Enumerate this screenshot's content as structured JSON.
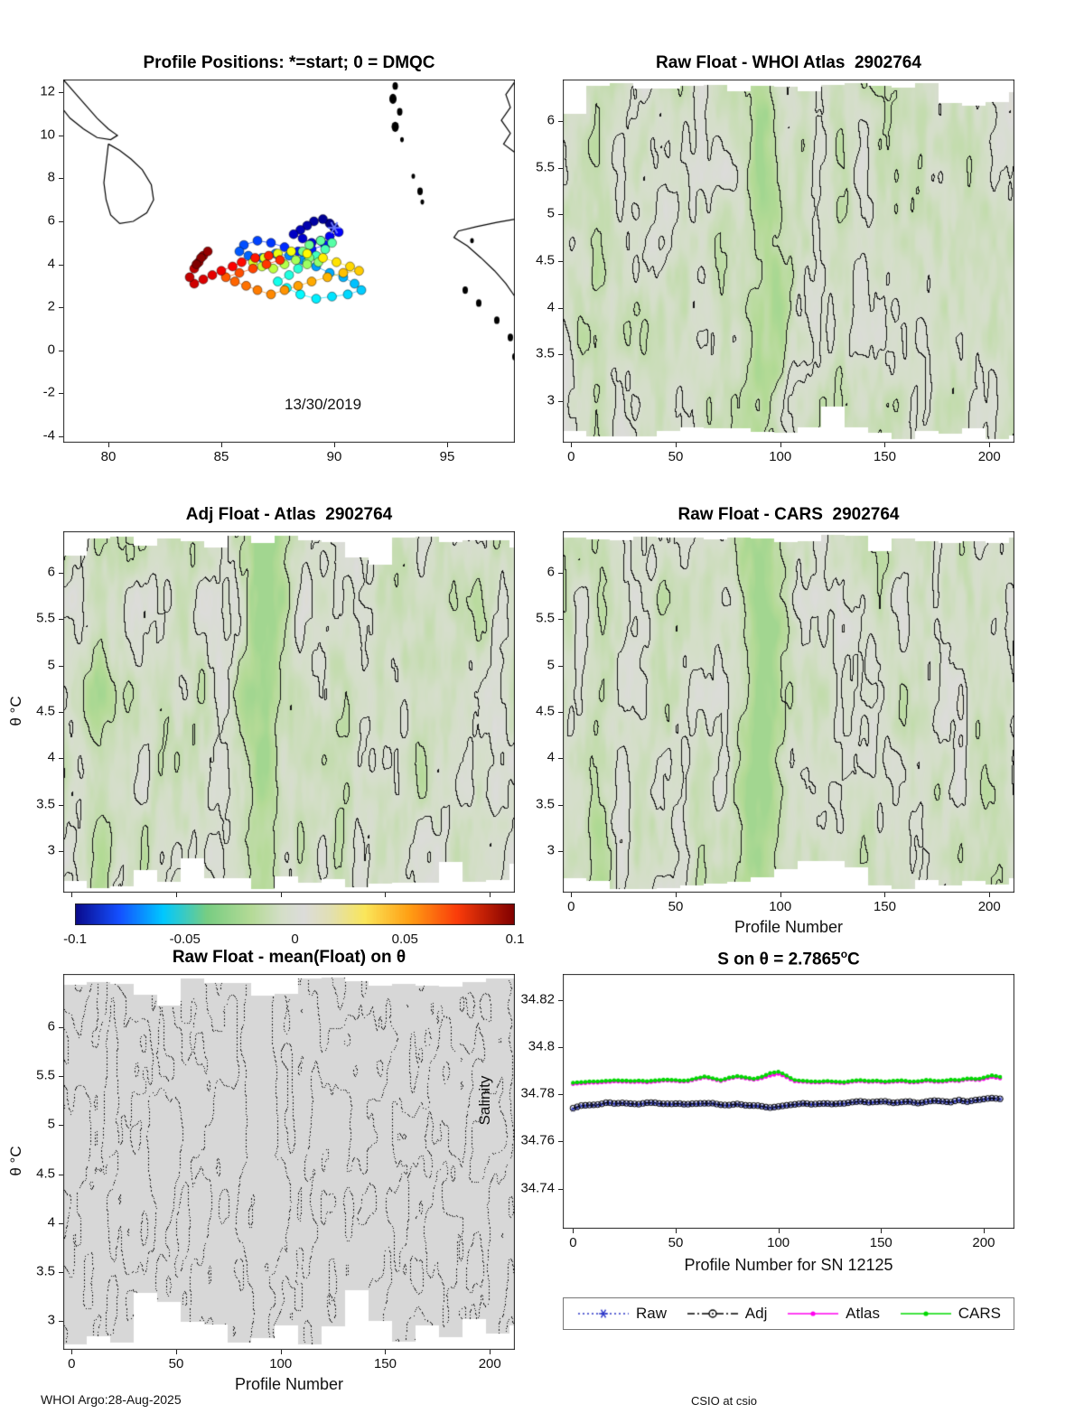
{
  "figure": {
    "footer_left": "WHOI Argo:28-Aug-2025",
    "footer_right": "CSIO at csio"
  },
  "legend": {
    "items": [
      {
        "name": "raw",
        "label": "Raw",
        "color": "#2a35c8",
        "line": "dotted",
        "marker": "asterisk"
      },
      {
        "name": "adj",
        "label": "Adj",
        "color": "#000000",
        "line": "dashdot",
        "marker": "circle"
      },
      {
        "name": "atlas",
        "label": "Atlas",
        "color": "#ff00ee",
        "line": "solid",
        "marker": "dot"
      },
      {
        "name": "cars",
        "label": "CARS",
        "color": "#00d800",
        "line": "solid",
        "marker": "dot"
      }
    ]
  },
  "chart_data": [
    {
      "id": "positions",
      "type": "scatter",
      "title": "Profile Positions: *=start; 0 = DMQC",
      "date_label": "13/30/2019",
      "xlim": [
        78,
        98
      ],
      "ylim": [
        -4.3,
        12.6
      ],
      "xticks": [
        80,
        85,
        90,
        95
      ],
      "yticks": [
        -4,
        -2,
        0,
        2,
        4,
        6,
        8,
        10,
        12
      ],
      "start": [
        90.0,
        5.7
      ],
      "trajectory": [
        [
          90.0,
          5.7
        ],
        [
          89.8,
          5.9
        ],
        [
          89.5,
          6.1
        ],
        [
          89.1,
          6.0
        ],
        [
          88.8,
          5.8
        ],
        [
          88.5,
          5.6
        ],
        [
          88.2,
          5.4
        ],
        [
          88.6,
          5.2
        ],
        [
          89.0,
          5.0
        ],
        [
          89.4,
          5.1
        ],
        [
          89.8,
          5.3
        ],
        [
          90.2,
          5.5
        ],
        [
          89.6,
          4.9
        ],
        [
          89.0,
          4.7
        ],
        [
          88.4,
          4.6
        ],
        [
          87.8,
          4.8
        ],
        [
          87.2,
          5.0
        ],
        [
          86.6,
          5.1
        ],
        [
          86.0,
          4.9
        ],
        [
          85.8,
          4.6
        ],
        [
          86.2,
          4.4
        ],
        [
          86.8,
          4.3
        ],
        [
          87.4,
          4.5
        ],
        [
          88.0,
          4.4
        ],
        [
          88.6,
          4.2
        ],
        [
          89.2,
          3.9
        ],
        [
          89.8,
          3.6
        ],
        [
          90.4,
          3.4
        ],
        [
          90.9,
          3.1
        ],
        [
          91.2,
          2.8
        ],
        [
          90.6,
          2.6
        ],
        [
          89.9,
          2.5
        ],
        [
          89.2,
          2.4
        ],
        [
          88.5,
          2.6
        ],
        [
          87.9,
          2.9
        ],
        [
          87.5,
          3.2
        ],
        [
          88.0,
          3.5
        ],
        [
          88.4,
          3.8
        ],
        [
          88.8,
          4.1
        ],
        [
          89.2,
          4.4
        ],
        [
          89.6,
          4.7
        ],
        [
          89.9,
          5.0
        ],
        [
          89.4,
          5.1
        ],
        [
          88.9,
          4.9
        ],
        [
          88.6,
          4.6
        ],
        [
          88.9,
          4.3
        ],
        [
          89.3,
          4.1
        ],
        [
          88.8,
          4.0
        ],
        [
          88.3,
          4.2
        ],
        [
          87.8,
          4.0
        ],
        [
          87.3,
          3.8
        ],
        [
          86.8,
          3.9
        ],
        [
          86.4,
          4.1
        ],
        [
          86.9,
          4.3
        ],
        [
          87.5,
          4.5
        ],
        [
          88.1,
          4.6
        ],
        [
          88.8,
          4.5
        ],
        [
          89.5,
          4.3
        ],
        [
          90.1,
          4.1
        ],
        [
          90.7,
          3.9
        ],
        [
          91.1,
          3.7
        ],
        [
          90.4,
          3.6
        ],
        [
          89.7,
          3.4
        ],
        [
          89.0,
          3.2
        ],
        [
          88.4,
          3.0
        ],
        [
          87.8,
          2.8
        ],
        [
          87.2,
          2.6
        ],
        [
          86.6,
          2.8
        ],
        [
          86.1,
          3.0
        ],
        [
          85.6,
          3.2
        ],
        [
          85.2,
          3.4
        ],
        [
          85.8,
          3.6
        ],
        [
          86.4,
          3.8
        ],
        [
          87.0,
          4.0
        ],
        [
          87.6,
          4.2
        ],
        [
          87.1,
          4.4
        ],
        [
          86.5,
          4.3
        ],
        [
          85.9,
          4.1
        ],
        [
          85.5,
          3.9
        ],
        [
          85.0,
          3.7
        ],
        [
          84.6,
          3.5
        ],
        [
          84.2,
          3.3
        ],
        [
          83.8,
          3.1
        ],
        [
          83.6,
          3.4
        ],
        [
          83.8,
          3.8
        ],
        [
          84.0,
          4.1
        ],
        [
          84.2,
          4.4
        ],
        [
          84.4,
          4.6
        ],
        [
          84.1,
          4.3
        ],
        [
          83.9,
          4.0
        ]
      ],
      "coastlines": [
        [
          [
            78.0,
            12.6
          ],
          [
            78.5,
            12.0
          ],
          [
            79.0,
            11.4
          ],
          [
            79.5,
            10.8
          ],
          [
            80.0,
            10.3
          ],
          [
            80.4,
            10.0
          ],
          [
            80.1,
            9.8
          ],
          [
            79.5,
            9.9
          ],
          [
            78.9,
            10.3
          ],
          [
            78.3,
            10.8
          ],
          [
            78.0,
            11.2
          ]
        ],
        [
          [
            80.0,
            9.6
          ],
          [
            80.5,
            9.3
          ],
          [
            81.0,
            8.9
          ],
          [
            81.5,
            8.4
          ],
          [
            81.9,
            7.7
          ],
          [
            82.0,
            7.0
          ],
          [
            81.7,
            6.4
          ],
          [
            81.1,
            6.0
          ],
          [
            80.5,
            5.9
          ],
          [
            80.1,
            6.3
          ],
          [
            79.9,
            7.0
          ],
          [
            79.8,
            7.8
          ],
          [
            79.9,
            8.7
          ],
          [
            80.0,
            9.6
          ]
        ],
        [
          [
            98.0,
            12.5
          ],
          [
            97.6,
            11.9
          ],
          [
            97.8,
            11.3
          ],
          [
            97.4,
            10.7
          ],
          [
            97.8,
            10.1
          ],
          [
            97.5,
            9.6
          ],
          [
            98.0,
            9.2
          ]
        ],
        [
          [
            98.0,
            6.1
          ],
          [
            97.2,
            5.95
          ],
          [
            96.3,
            5.75
          ],
          [
            95.5,
            5.55
          ],
          [
            95.3,
            5.25
          ],
          [
            95.9,
            4.85
          ],
          [
            96.5,
            4.3
          ],
          [
            97.1,
            3.7
          ],
          [
            97.6,
            3.1
          ],
          [
            98.0,
            2.5
          ]
        ]
      ],
      "islands": [
        [
          92.7,
          12.3,
          3
        ],
        [
          92.6,
          11.7,
          4
        ],
        [
          92.9,
          11.1,
          3
        ],
        [
          92.7,
          10.4,
          4
        ],
        [
          93.0,
          9.8,
          2
        ],
        [
          93.5,
          8.1,
          2
        ],
        [
          93.8,
          7.4,
          3
        ],
        [
          93.9,
          6.9,
          2
        ],
        [
          96.1,
          5.1,
          2
        ],
        [
          95.8,
          2.8,
          3
        ],
        [
          96.4,
          2.2,
          3
        ],
        [
          97.2,
          1.4,
          3
        ],
        [
          97.8,
          0.6,
          3
        ],
        [
          98.0,
          -0.3,
          3
        ]
      ]
    },
    {
      "id": "raw_atlas",
      "type": "heatmap",
      "style": "contour",
      "title": "Raw Float - WHOI Atlas  2902764",
      "xlim": [
        -4,
        212
      ],
      "ylim": [
        2.55,
        6.45
      ],
      "xticks": [
        0,
        50,
        100,
        150,
        200
      ],
      "yticks": [
        3,
        3.5,
        4,
        4.5,
        5,
        5.5,
        6
      ],
      "value_range": [
        -0.1,
        0.1
      ]
    },
    {
      "id": "adj_atlas",
      "type": "heatmap",
      "style": "contour",
      "title": "Adj Float - Atlas  2902764",
      "ylabel": "θ °C",
      "xlim": [
        -4,
        212
      ],
      "ylim": [
        2.55,
        6.45
      ],
      "xticks": [
        0,
        50,
        100,
        150,
        200
      ],
      "yticks": [
        3,
        3.5,
        4,
        4.5,
        5,
        5.5,
        6
      ],
      "value_range": [
        -0.1,
        0.1
      ]
    },
    {
      "id": "raw_cars",
      "type": "heatmap",
      "style": "contour",
      "title": "Raw Float - CARS  2902764",
      "xlabel": "Profile Number",
      "xlim": [
        -4,
        212
      ],
      "ylim": [
        2.55,
        6.45
      ],
      "xticks": [
        0,
        50,
        100,
        150,
        200
      ],
      "yticks": [
        3,
        3.5,
        4,
        4.5,
        5,
        5.5,
        6
      ],
      "value_range": [
        -0.1,
        0.1
      ]
    },
    {
      "id": "colorbar",
      "type": "colorbar",
      "range": [
        -0.1,
        0.1
      ],
      "ticks": [
        -0.1,
        -0.05,
        0,
        0.05,
        0.1
      ]
    },
    {
      "id": "mean_float",
      "type": "heatmap",
      "style": "contour-dotted",
      "title": "Raw Float - mean(Float) on θ",
      "xlabel": "Profile Number",
      "ylabel": "θ °C",
      "xlim": [
        -4,
        212
      ],
      "ylim": [
        2.7,
        6.55
      ],
      "xticks": [
        0,
        50,
        100,
        150,
        200
      ],
      "yticks": [
        3,
        3.5,
        4,
        4.5,
        5,
        5.5,
        6
      ]
    },
    {
      "id": "salinity",
      "type": "line",
      "title_pre": "S on θ = 2.7865",
      "title_sup": "o",
      "title_post": "C",
      "xlabel": "Profile Number for SN 12125",
      "ylabel": "Salinity",
      "xlim": [
        -5,
        215
      ],
      "ylim": [
        34.723,
        34.831
      ],
      "xticks": [
        0,
        50,
        100,
        150,
        200
      ],
      "yticks": [
        34.74,
        34.76,
        34.78,
        34.8,
        34.82
      ],
      "x": [
        0,
        4,
        8,
        12,
        16,
        20,
        24,
        28,
        32,
        36,
        40,
        44,
        48,
        52,
        56,
        60,
        64,
        68,
        72,
        76,
        80,
        84,
        88,
        92,
        96,
        100,
        104,
        108,
        112,
        116,
        120,
        124,
        128,
        132,
        136,
        140,
        144,
        148,
        152,
        156,
        160,
        164,
        168,
        172,
        176,
        180,
        184,
        188,
        192,
        196,
        200,
        204,
        208
      ],
      "series": [
        {
          "name": "Raw",
          "color": "#2a35c8",
          "line": "dotted",
          "marker": "asterisk",
          "values": [
            34.7738,
            34.7752,
            34.7755,
            34.7758,
            34.776,
            34.7756,
            34.7762,
            34.7758,
            34.7755,
            34.776,
            34.7763,
            34.7759,
            34.7757,
            34.7761,
            34.7758,
            34.7756,
            34.776,
            34.7762,
            34.7757,
            34.7754,
            34.7758,
            34.7752,
            34.7748,
            34.7745,
            34.7743,
            34.7747,
            34.7752,
            34.7756,
            34.7759,
            34.7755,
            34.7758,
            34.7762,
            34.776,
            34.7757,
            34.7761,
            34.7764,
            34.776,
            34.7763,
            34.7766,
            34.7762,
            34.7765,
            34.7768,
            34.7764,
            34.7767,
            34.777,
            34.7766,
            34.7762,
            34.7772,
            34.7768,
            34.7776,
            34.778,
            34.7782,
            34.7778
          ]
        },
        {
          "name": "Adj",
          "color": "#000000",
          "line": "dashdot",
          "marker": "circle",
          "values": [
            34.7742,
            34.7754,
            34.7757,
            34.776,
            34.7762,
            34.7758,
            34.7764,
            34.776,
            34.7757,
            34.7762,
            34.7765,
            34.7761,
            34.7759,
            34.7763,
            34.776,
            34.7758,
            34.7762,
            34.7764,
            34.7759,
            34.7756,
            34.776,
            34.7754,
            34.775,
            34.7747,
            34.7745,
            34.7749,
            34.7754,
            34.7758,
            34.7761,
            34.7757,
            34.776,
            34.7764,
            34.7762,
            34.7759,
            34.7763,
            34.7766,
            34.7762,
            34.7765,
            34.7768,
            34.7764,
            34.7767,
            34.777,
            34.7766,
            34.7769,
            34.7772,
            34.7768,
            34.7764,
            34.7774,
            34.777,
            34.7778,
            34.7782,
            34.7784,
            34.778
          ]
        },
        {
          "name": "Atlas",
          "color": "#ff00ee",
          "line": "solid",
          "marker": "dot",
          "values": [
            34.7846,
            34.7849,
            34.7851,
            34.7848,
            34.7852,
            34.7854,
            34.785,
            34.7853,
            34.7855,
            34.7851,
            34.7854,
            34.7857,
            34.7853,
            34.7856,
            34.7859,
            34.7868,
            34.7873,
            34.7866,
            34.786,
            34.787,
            34.7876,
            34.7868,
            34.7862,
            34.7868,
            34.7878,
            34.7884,
            34.7871,
            34.7859,
            34.7855,
            34.7851,
            34.7849,
            34.7853,
            34.785,
            34.7847,
            34.7851,
            34.7854,
            34.785,
            34.7853,
            34.7849,
            34.7852,
            34.7855,
            34.7851,
            34.7854,
            34.7857,
            34.7853,
            34.7856,
            34.7859,
            34.7855,
            34.7859,
            34.7863,
            34.7867,
            34.7872,
            34.7869
          ]
        },
        {
          "name": "CARS",
          "color": "#00d800",
          "line": "solid",
          "marker": "dot",
          "values": [
            34.7851,
            34.7854,
            34.7856,
            34.7853,
            34.7857,
            34.7859,
            34.7855,
            34.7857,
            34.786,
            34.7856,
            34.7859,
            34.7861,
            34.7857,
            34.786,
            34.7863,
            34.7872,
            34.7877,
            34.787,
            34.7864,
            34.7874,
            34.788,
            34.7872,
            34.7866,
            34.7874,
            34.7888,
            34.7893,
            34.7878,
            34.7864,
            34.7859,
            34.7855,
            34.7853,
            34.7857,
            34.7854,
            34.7851,
            34.7855,
            34.7858,
            34.7854,
            34.7857,
            34.7853,
            34.7856,
            34.7859,
            34.7855,
            34.7858,
            34.7861,
            34.7857,
            34.786,
            34.7863,
            34.7859,
            34.7863,
            34.7867,
            34.7873,
            34.7879,
            34.7875
          ]
        }
      ]
    }
  ]
}
